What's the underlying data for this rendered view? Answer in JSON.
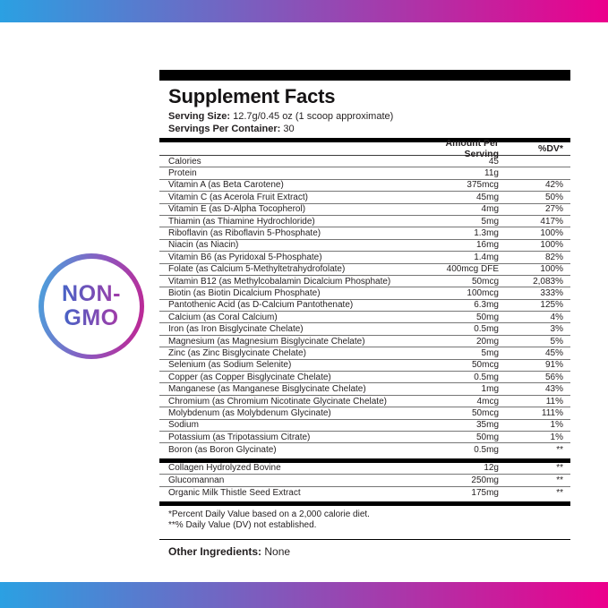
{
  "badge": {
    "line1": "NON-",
    "line2": "GMO"
  },
  "panel": {
    "title": "Supplement Facts",
    "serving_size_label": "Serving Size:",
    "serving_size_value": "12.7g/0.45 oz (1 scoop approximate)",
    "servings_label": "Servings Per Container:",
    "servings_value": "30",
    "col_amount": "Amount Per Serving",
    "col_dv": "%DV*",
    "rows": [
      {
        "name": "Calories",
        "amount": "45",
        "dv": ""
      },
      {
        "name": "Protein",
        "amount": "11g",
        "dv": ""
      },
      {
        "name": "Vitamin A (as Beta Carotene)",
        "amount": "375mcg",
        "dv": "42%"
      },
      {
        "name": "Vitamin C (as Acerola Fruit Extract)",
        "amount": "45mg",
        "dv": "50%"
      },
      {
        "name": "Vitamin E (as D-Alpha Tocopherol)",
        "amount": "4mg",
        "dv": "27%"
      },
      {
        "name": "Thiamin (as Thiamine Hydrochloride)",
        "amount": "5mg",
        "dv": "417%"
      },
      {
        "name": "Riboflavin (as Riboflavin 5-Phosphate)",
        "amount": "1.3mg",
        "dv": "100%"
      },
      {
        "name": "Niacin (as Niacin)",
        "amount": "16mg",
        "dv": "100%"
      },
      {
        "name": "Vitamin B6 (as Pyridoxal 5-Phosphate)",
        "amount": "1.4mg",
        "dv": "82%"
      },
      {
        "name": "Folate (as Calcium 5-Methyltetrahydrofolate)",
        "amount": "400mcg DFE",
        "dv": "100%"
      },
      {
        "name": "Vitamin B12 (as Methylcobalamin Dicalcium Phosphate)",
        "amount": "50mcg",
        "dv": "2,083%"
      },
      {
        "name": "Biotin (as Biotin Dicalcium Phosphate)",
        "amount": "100mcg",
        "dv": "333%"
      },
      {
        "name": "Pantothenic Acid (as D-Calcium Pantothenate)",
        "amount": "6.3mg",
        "dv": "125%"
      },
      {
        "name": "Calcium (as Coral Calcium)",
        "amount": "50mg",
        "dv": "4%"
      },
      {
        "name": "Iron (as Iron Bisglycinate Chelate)",
        "amount": "0.5mg",
        "dv": "3%"
      },
      {
        "name": "Magnesium (as Magnesium Bisglycinate Chelate)",
        "amount": "20mg",
        "dv": "5%"
      },
      {
        "name": "Zinc (as Zinc Bisglycinate Chelate)",
        "amount": "5mg",
        "dv": "45%"
      },
      {
        "name": "Selenium (as Sodium Selenite)",
        "amount": "50mcg",
        "dv": "91%"
      },
      {
        "name": "Copper (as Copper Bisglycinate Chelate)",
        "amount": "0.5mg",
        "dv": "56%"
      },
      {
        "name": "Manganese (as Manganese Bisglycinate Chelate)",
        "amount": "1mg",
        "dv": "43%"
      },
      {
        "name": "Chromium (as Chromium Nicotinate Glycinate Chelate)",
        "amount": "4mcg",
        "dv": "11%"
      },
      {
        "name": "Molybdenum (as Molybdenum Glycinate)",
        "amount": "50mcg",
        "dv": "111%"
      },
      {
        "name": "Sodium",
        "amount": "35mg",
        "dv": "1%"
      },
      {
        "name": "Potassium (as Tripotassium Citrate)",
        "amount": "50mg",
        "dv": "1%"
      },
      {
        "name": "Boron (as Boron Glycinate)",
        "amount": "0.5mg",
        "dv": "**"
      }
    ],
    "extra_rows": [
      {
        "name": "Collagen Hydrolyzed Bovine",
        "amount": "12g",
        "dv": "**"
      },
      {
        "name": "Glucomannan",
        "amount": "250mg",
        "dv": "**"
      },
      {
        "name": "Organic Milk Thistle Seed Extract",
        "amount": "175mg",
        "dv": "**"
      }
    ],
    "footnotes": [
      "*Percent Daily Value based on a 2,000 calorie diet.",
      "**% Daily Value (DV) not established."
    ],
    "other_ingredients_label": "Other Ingredients:",
    "other_ingredients_value": "None"
  },
  "colors": {
    "gradient_blue": "#2BA0E2",
    "gradient_pink": "#EC008C",
    "badge_blue": "#45A7DF",
    "badge_mid": "#8E56BE",
    "badge_magenta": "#C4218F",
    "badge_text_blue": "#4763C6",
    "badge_text_purple": "#A23BA8",
    "text_dark": "#231F20"
  }
}
